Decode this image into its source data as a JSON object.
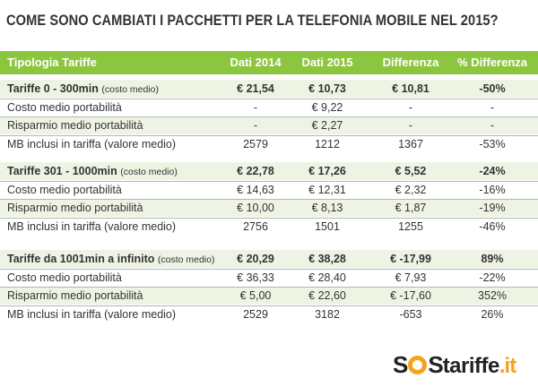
{
  "title": "COME SONO CAMBIATI I PACCHETTI PER LA TELEFONIA MOBILE NEL 2015?",
  "colors": {
    "header_bg": "#8cc63f",
    "row_tint": "#eef4e4",
    "logo_accent": "#f7a21b"
  },
  "chart_data": {
    "type": "table",
    "columns": [
      "Tipologia Tariffe",
      "Dati 2014",
      "Dati 2015",
      "Differenza",
      "% Differenza"
    ],
    "groups": [
      {
        "name": "Tariffe 0 - 300min",
        "note": "(costo medio)",
        "rows": [
          {
            "label": "Tariffe 0 - 300min",
            "note": "(costo medio)",
            "d2014": "€ 21,54",
            "d2015": "€ 10,73",
            "diff": "€ 10,81",
            "pct": "-50%"
          },
          {
            "label": "Costo medio portabilità",
            "d2014": "-",
            "d2015": "€ 9,22",
            "diff": "-",
            "pct": "-"
          },
          {
            "label": "Risparmio medio portabilità",
            "d2014": "-",
            "d2015": "€ 2,27",
            "diff": "-",
            "pct": "-"
          },
          {
            "label": "MB inclusi in tariffa (valore medio)",
            "d2014": "2579",
            "d2015": "1212",
            "diff": "1367",
            "pct": "-53%"
          }
        ]
      },
      {
        "name": "Tariffe 301 - 1000min",
        "note": "(costo medio)",
        "rows": [
          {
            "label": "Tariffe 301 - 1000min",
            "note": "(costo medio)",
            "d2014": "€ 22,78",
            "d2015": "€ 17,26",
            "diff": "€ 5,52",
            "pct": "-24%"
          },
          {
            "label": "Costo medio portabilità",
            "d2014": "€ 14,63",
            "d2015": "€ 12,31",
            "diff": "€ 2,32",
            "pct": "-16%"
          },
          {
            "label": "Risparmio medio portabilità",
            "d2014": "€ 10,00",
            "d2015": "€ 8,13",
            "diff": "€ 1,87",
            "pct": "-19%"
          },
          {
            "label": "MB inclusi in tariffa (valore medio)",
            "d2014": "2756",
            "d2015": "1501",
            "diff": "1255",
            "pct": "-46%"
          }
        ]
      },
      {
        "name": "Tariffe da 1001min a infinito",
        "note": "(costo medio)",
        "rows": [
          {
            "label": "Tariffe da 1001min a infinito",
            "note": "(costo medio)",
            "d2014": "€ 20,29",
            "d2015": "€ 38,28",
            "diff": "€ -17,99",
            "pct": "89%"
          },
          {
            "label": "Costo medio portabilità",
            "d2014": "€ 36,33",
            "d2015": "€ 28,40",
            "diff": "€ 7,93",
            "pct": "-22%"
          },
          {
            "label": "Risparmio medio portabilità",
            "d2014": "€ 5,00",
            "d2015": "€ 22,60",
            "diff": "€ -17,60",
            "pct": "352%"
          },
          {
            "label": "MB inclusi in tariffa (valore medio)",
            "d2014": "2529",
            "d2015": "3182",
            "diff": "-653",
            "pct": "26%"
          }
        ]
      }
    ]
  },
  "logo": {
    "prefix": "S",
    "middle_suffix": "S",
    "brand": "tariffe",
    "ext": ".it"
  }
}
